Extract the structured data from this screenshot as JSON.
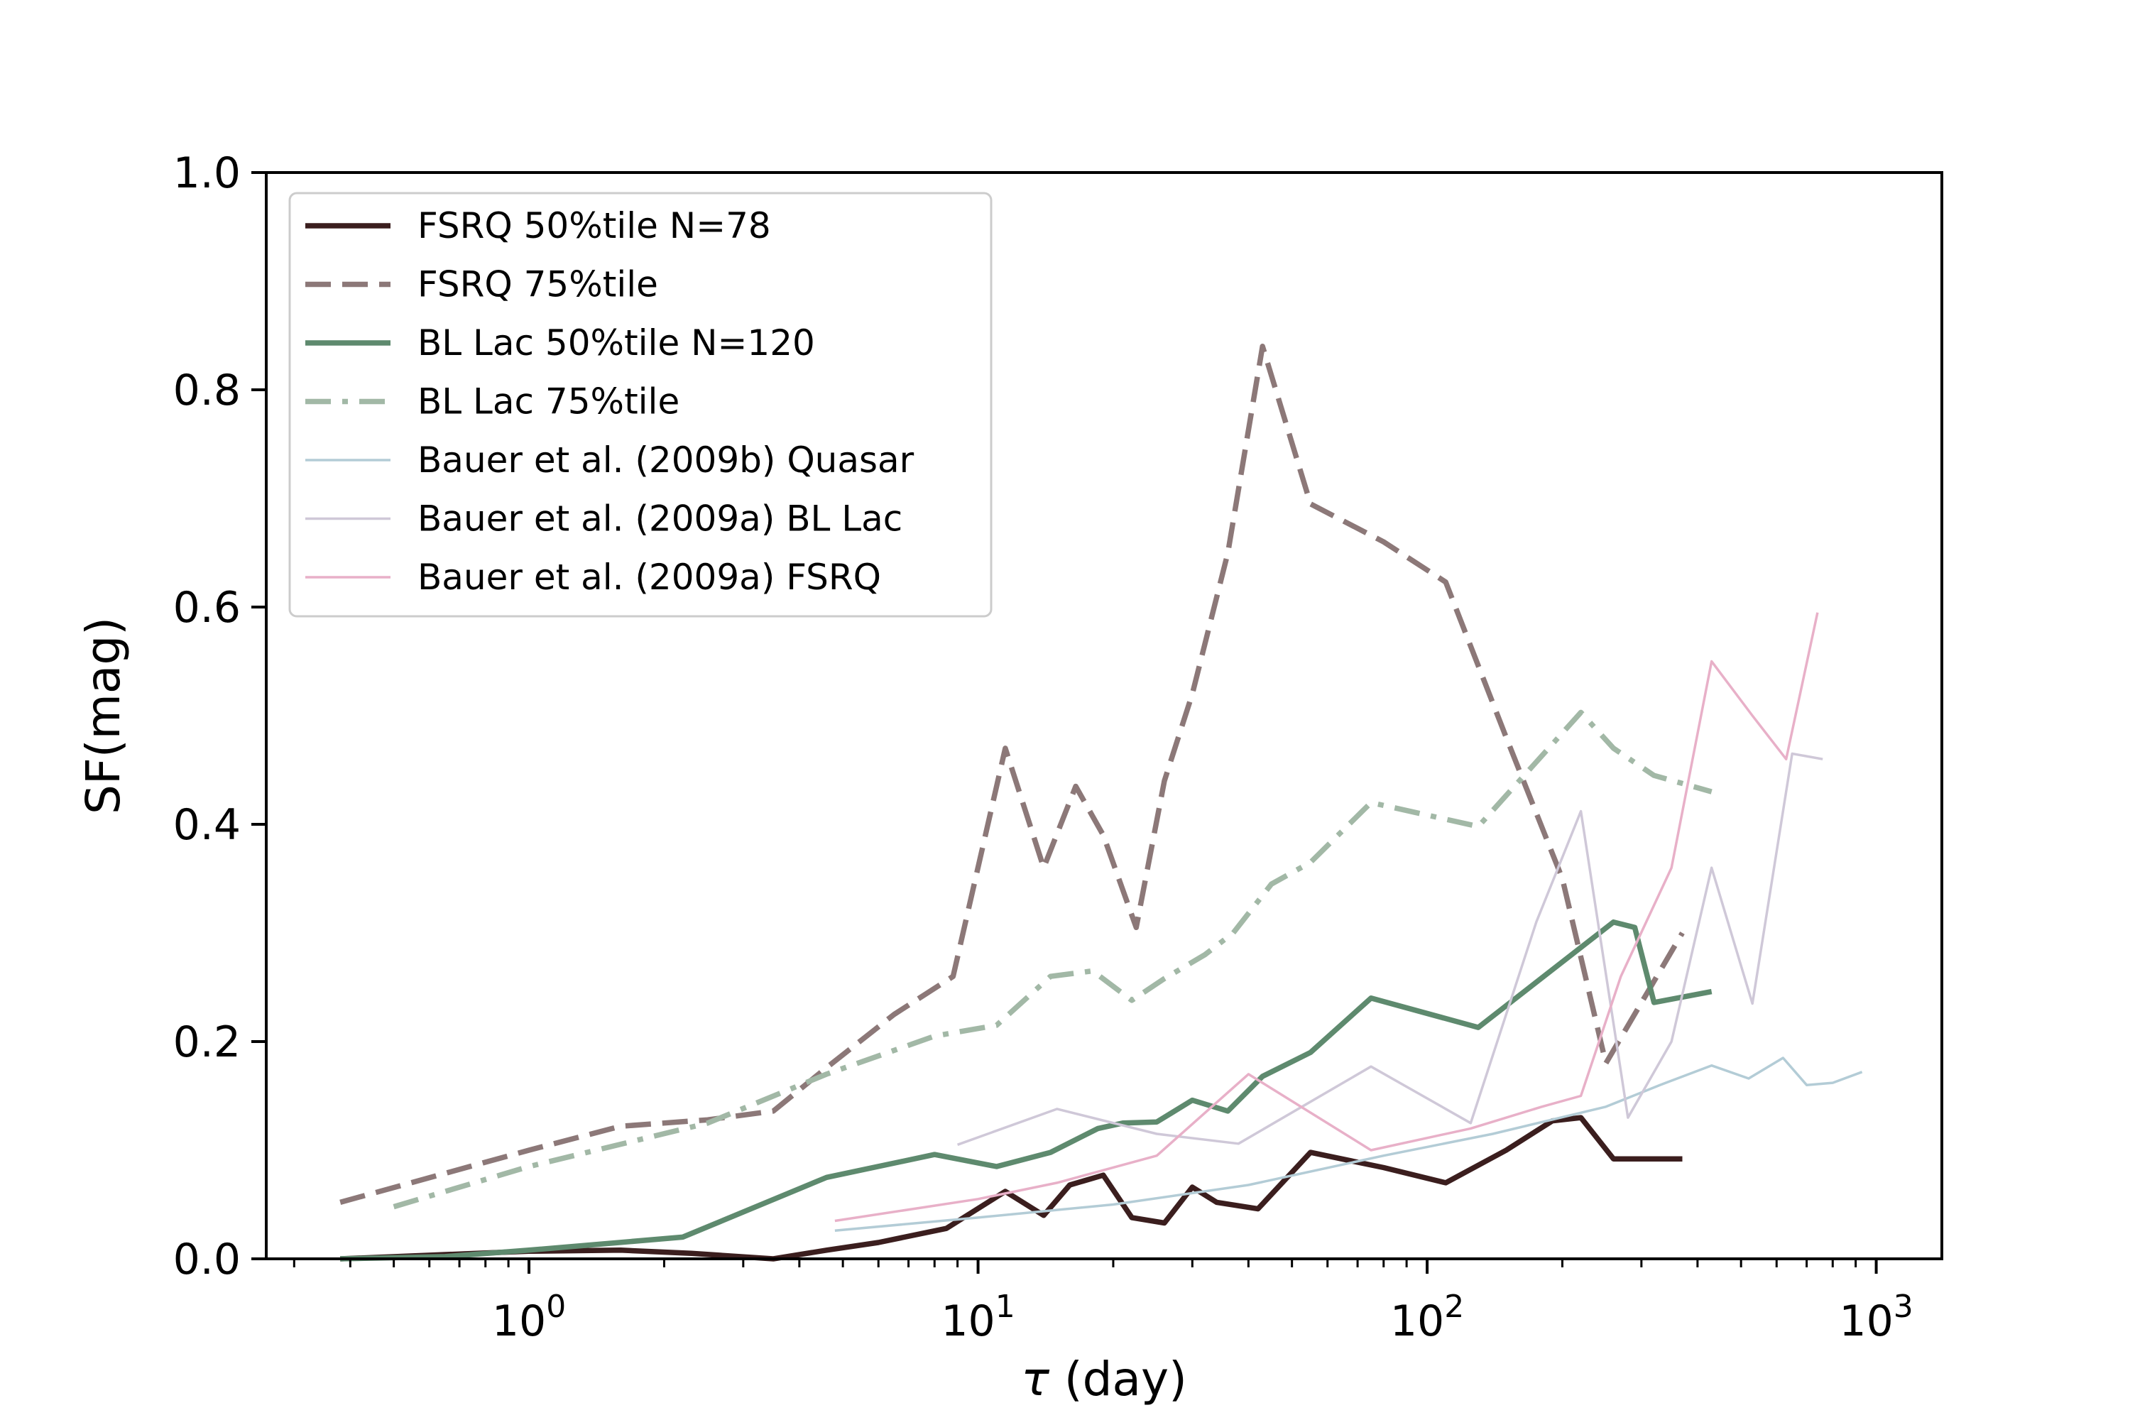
{
  "chart_data": {
    "type": "line",
    "title": "",
    "xlabel_symbol": "τ",
    "xlabel_rest": " (day)",
    "ylabel": "SF(mag)",
    "xscale": "log",
    "xlim": [
      0.26,
      1400
    ],
    "ylim": [
      0,
      1.0
    ],
    "grid": false,
    "legend_location": "upper-left",
    "y_ticks": [
      {
        "value": 0.0,
        "label": "0.0"
      },
      {
        "value": 0.2,
        "label": "0.2"
      },
      {
        "value": 0.4,
        "label": "0.4"
      },
      {
        "value": 0.6,
        "label": "0.6"
      },
      {
        "value": 0.8,
        "label": "0.8"
      },
      {
        "value": 1.0,
        "label": "1.0"
      }
    ],
    "x_ticks": [
      {
        "value": 1,
        "base": "10",
        "exp": "0"
      },
      {
        "value": 10,
        "base": "10",
        "exp": "1"
      },
      {
        "value": 100,
        "base": "10",
        "exp": "2"
      },
      {
        "value": 1000,
        "base": "10",
        "exp": "3"
      }
    ],
    "series": [
      {
        "name": "FSRQ 50%tile N=78",
        "color": "#3b1e1e",
        "dash": "solid",
        "weight": "thick",
        "opacity": 1,
        "x": [
          0.38,
          1.0,
          1.6,
          2.3,
          3.5,
          4.6,
          6.0,
          8.5,
          11.5,
          14.0,
          16.0,
          19.0,
          22.0,
          26.0,
          30.0,
          34.0,
          42.0,
          55.0,
          80.0,
          110.0,
          150.0,
          190.0,
          220.0,
          260.0,
          370.0
        ],
        "y": [
          0.0,
          0.007,
          0.008,
          0.005,
          0.0,
          0.008,
          0.015,
          0.028,
          0.062,
          0.04,
          0.068,
          0.077,
          0.038,
          0.033,
          0.066,
          0.052,
          0.046,
          0.098,
          0.084,
          0.07,
          0.1,
          0.127,
          0.13,
          0.092,
          0.092
        ]
      },
      {
        "name": "FSRQ 75%tile",
        "color": "#8c7878",
        "dash": "dashed",
        "weight": "thick",
        "opacity": 1,
        "x": [
          0.38,
          1.0,
          1.6,
          2.5,
          3.5,
          4.6,
          6.5,
          8.8,
          11.5,
          14.0,
          16.5,
          19.0,
          22.5,
          26.0,
          30.0,
          36.0,
          43.0,
          55.0,
          80.0,
          110.0,
          150.0,
          200.0,
          250.0,
          370.0
        ],
        "y": [
          0.052,
          0.1,
          0.122,
          0.128,
          0.136,
          0.176,
          0.225,
          0.26,
          0.47,
          0.36,
          0.435,
          0.39,
          0.305,
          0.44,
          0.52,
          0.65,
          0.84,
          0.695,
          0.66,
          0.623,
          0.48,
          0.35,
          0.18,
          0.3
        ]
      },
      {
        "name": "BL Lac 50%tile N=120",
        "color": "#5e8a6e",
        "dash": "solid",
        "weight": "thick",
        "opacity": 1,
        "x": [
          0.38,
          0.65,
          1.0,
          2.2,
          4.6,
          8.0,
          11.0,
          14.5,
          18.5,
          21.0,
          25.0,
          30.0,
          36.0,
          43.0,
          55.0,
          75.0,
          130.0,
          260.0,
          290.0,
          320.0,
          430.0
        ],
        "y": [
          0.0,
          0.002,
          0.008,
          0.02,
          0.075,
          0.096,
          0.085,
          0.098,
          0.12,
          0.125,
          0.126,
          0.146,
          0.136,
          0.168,
          0.19,
          0.24,
          0.213,
          0.31,
          0.305,
          0.236,
          0.246
        ]
      },
      {
        "name": "BL Lac 75%tile",
        "color": "#a2b8a6",
        "dash": "dashdot",
        "weight": "thick",
        "opacity": 1,
        "x": [
          0.5,
          1.0,
          2.5,
          4.6,
          8.0,
          11.0,
          14.5,
          18.0,
          22.0,
          26.0,
          32.0,
          37.0,
          45.0,
          55.0,
          75.0,
          130.0,
          220.0,
          260.0,
          320.0,
          430.0
        ],
        "y": [
          0.048,
          0.085,
          0.125,
          0.17,
          0.205,
          0.215,
          0.26,
          0.265,
          0.238,
          0.258,
          0.28,
          0.3,
          0.345,
          0.365,
          0.42,
          0.398,
          0.503,
          0.47,
          0.445,
          0.43
        ]
      },
      {
        "name": "Bauer et al. (2009b) Quasar",
        "color": "#b3ccd6",
        "dash": "solid",
        "weight": "thin",
        "opacity": 1,
        "x": [
          4.8,
          10.0,
          20.0,
          40.0,
          80.0,
          140.0,
          250.0,
          330.0,
          430.0,
          520.0,
          620.0,
          700.0,
          800.0,
          930.0
        ],
        "y": [
          0.026,
          0.038,
          0.05,
          0.068,
          0.095,
          0.115,
          0.14,
          0.16,
          0.178,
          0.166,
          0.185,
          0.16,
          0.162,
          0.172
        ]
      },
      {
        "name": "Bauer et al. (2009a) BL Lac",
        "color": "#cfc8d8",
        "dash": "solid",
        "weight": "thin",
        "opacity": 1,
        "x": [
          9.0,
          15.0,
          25.0,
          38.0,
          75.0,
          125.0,
          175.0,
          220.0,
          280.0,
          350.0,
          430.0,
          530.0,
          650.0,
          760.0
        ],
        "y": [
          0.105,
          0.138,
          0.115,
          0.106,
          0.177,
          0.125,
          0.31,
          0.412,
          0.13,
          0.2,
          0.36,
          0.235,
          0.465,
          0.46
        ]
      },
      {
        "name": "Bauer et al. (2009a) FSRQ",
        "color": "#e8b0c8",
        "dash": "solid",
        "weight": "thin",
        "opacity": 1,
        "x": [
          4.8,
          10.0,
          15.0,
          25.0,
          40.0,
          75.0,
          125.0,
          180.0,
          220.0,
          270.0,
          350.0,
          430.0,
          530.0,
          630.0,
          740.0
        ],
        "y": [
          0.035,
          0.055,
          0.07,
          0.095,
          0.17,
          0.1,
          0.12,
          0.14,
          0.15,
          0.26,
          0.36,
          0.55,
          0.5,
          0.46,
          0.595
        ]
      }
    ]
  }
}
